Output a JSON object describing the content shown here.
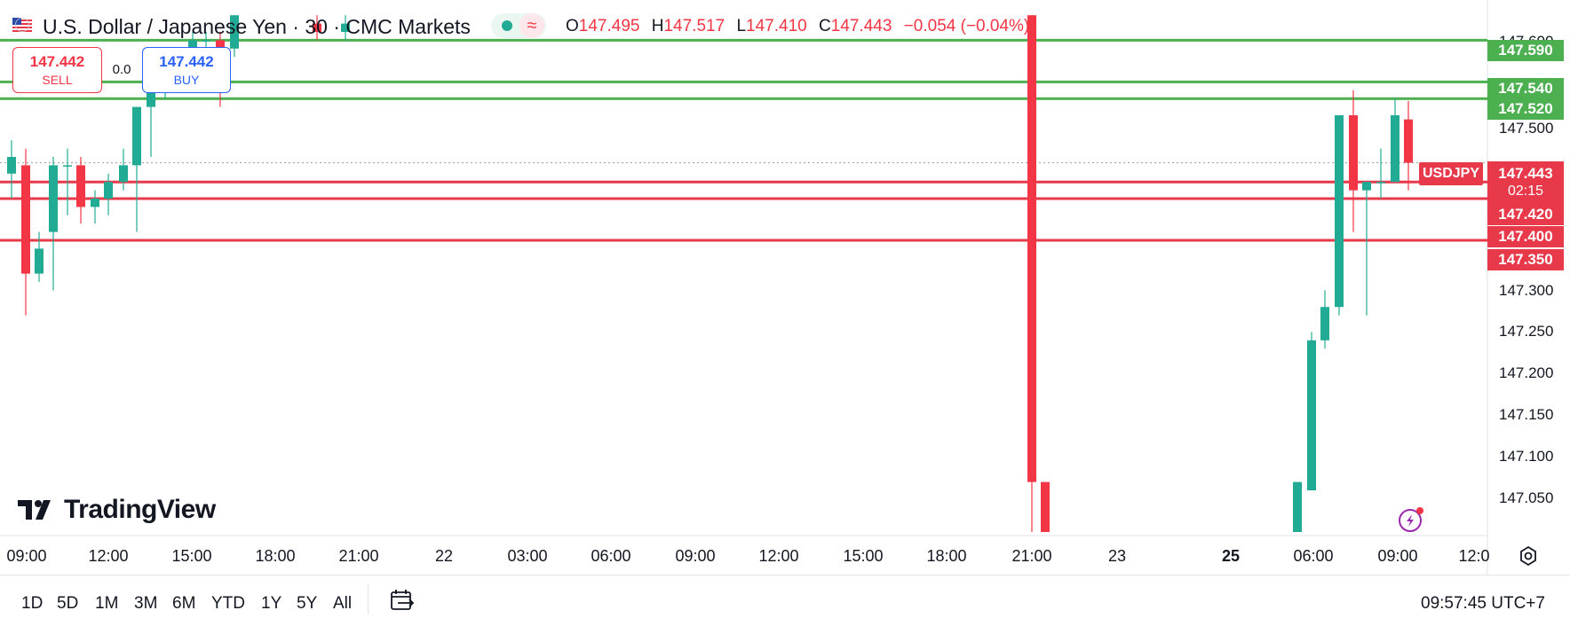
{
  "header": {
    "symbol_title": "U.S. Dollar / Japanese Yen · 30 · CMC Markets",
    "ohlc": {
      "o_label": "O",
      "o_value": "147.495",
      "h_label": "H",
      "h_value": "147.517",
      "l_label": "L",
      "l_value": "147.410",
      "c_label": "C",
      "c_value": "147.443",
      "change": "−0.054 (−0.04%)"
    },
    "status_wave": "≈"
  },
  "trade": {
    "sell_price": "147.442",
    "sell_label": "SELL",
    "spread": "0.0",
    "buy_price": "147.442",
    "buy_label": "BUY"
  },
  "price_axis": {
    "labels": [
      "147.600",
      "147.500",
      "147.300",
      "147.250",
      "147.200",
      "147.150",
      "147.100",
      "147.050"
    ]
  },
  "level_tags": {
    "green": [
      "147.590",
      "147.540",
      "147.520"
    ],
    "red": [
      "147.420",
      "147.400",
      "147.350"
    ]
  },
  "current": {
    "symbol": "USDJPY",
    "price": "147.443",
    "countdown": "02:15"
  },
  "time_axis": [
    "09:00",
    "12:00",
    "15:00",
    "18:00",
    "21:00",
    "22",
    "03:00",
    "06:00",
    "09:00",
    "12:00",
    "15:00",
    "18:00",
    "21:00",
    "23",
    "25",
    "06:00",
    "09:00",
    "12:0"
  ],
  "range_buttons": [
    "1D",
    "5D",
    "1M",
    "3M",
    "6M",
    "YTD",
    "1Y",
    "5Y",
    "All"
  ],
  "clock": "09:57:45 UTC+7",
  "logo_text": "TradingView",
  "colors": {
    "up": "#22ab94",
    "down": "#f23645",
    "support": "#e8394a",
    "resistance": "#4caf50"
  },
  "chart_data": {
    "type": "candlestick",
    "title": "U.S. Dollar / Japanese Yen · 30 · CMC Markets",
    "interval": "30",
    "ylim": [
      147.0,
      147.62
    ],
    "resistance_levels": [
      147.59,
      147.54,
      147.52
    ],
    "support_levels": [
      147.42,
      147.4,
      147.35
    ],
    "current_price": 147.443,
    "candles": [
      {
        "t": "Jul 21 08:30",
        "o": 147.43,
        "h": 147.47,
        "l": 147.4,
        "c": 147.45
      },
      {
        "t": "Jul 21 09:00",
        "o": 147.44,
        "h": 147.46,
        "l": 147.26,
        "c": 147.31
      },
      {
        "t": "Jul 21 09:30",
        "o": 147.31,
        "h": 147.36,
        "l": 147.3,
        "c": 147.34
      },
      {
        "t": "Jul 21 10:00",
        "o": 147.36,
        "h": 147.45,
        "l": 147.29,
        "c": 147.44
      },
      {
        "t": "Jul 21 10:30",
        "o": 147.44,
        "h": 147.46,
        "l": 147.38,
        "c": 147.44
      },
      {
        "t": "Jul 21 11:00",
        "o": 147.44,
        "h": 147.45,
        "l": 147.37,
        "c": 147.39
      },
      {
        "t": "Jul 21 11:30",
        "o": 147.39,
        "h": 147.41,
        "l": 147.37,
        "c": 147.4
      },
      {
        "t": "Jul 21 12:00",
        "o": 147.4,
        "h": 147.43,
        "l": 147.38,
        "c": 147.42
      },
      {
        "t": "Jul 21 12:30",
        "o": 147.42,
        "h": 147.46,
        "l": 147.41,
        "c": 147.44
      },
      {
        "t": "Jul 21 13:00",
        "o": 147.44,
        "h": 147.51,
        "l": 147.36,
        "c": 147.51
      },
      {
        "t": "Jul 21 13:30",
        "o": 147.51,
        "h": 147.55,
        "l": 147.45,
        "c": 147.55
      },
      {
        "t": "Jul 21 14:00",
        "o": 147.55,
        "h": 147.56,
        "l": 147.52,
        "c": 147.56
      },
      {
        "t": "Jul 21 14:30",
        "o": 147.56,
        "h": 147.58,
        "l": 147.54,
        "c": 147.58
      },
      {
        "t": "Jul 21 15:00",
        "o": 147.58,
        "h": 147.6,
        "l": 147.53,
        "c": 147.59
      },
      {
        "t": "Jul 21 15:30",
        "o": 147.59,
        "h": 147.6,
        "l": 147.57,
        "c": 147.59
      },
      {
        "t": "Jul 21 16:00",
        "o": 147.59,
        "h": 147.6,
        "l": 147.51,
        "c": 147.58
      },
      {
        "t": "Jul 21 16:30",
        "o": 147.58,
        "h": 147.62,
        "l": 147.57,
        "c": 147.62
      },
      {
        "t": "Jul 21 19:30",
        "o": 147.61,
        "h": 147.62,
        "l": 147.59,
        "c": 147.6
      },
      {
        "t": "Jul 21 20:30",
        "o": 147.6,
        "h": 147.62,
        "l": 147.59,
        "c": 147.61
      },
      {
        "t": "Jul 22 21:00",
        "o": 147.62,
        "h": 147.62,
        "l": 147.0,
        "c": 147.06
      },
      {
        "t": "Jul 22 21:30",
        "o": 147.06,
        "h": 147.06,
        "l": 147.0,
        "c": 147.0
      },
      {
        "t": "Jul 25 05:30",
        "o": 147.0,
        "h": 147.06,
        "l": 147.0,
        "c": 147.06
      },
      {
        "t": "Jul 25 06:00",
        "o": 147.05,
        "h": 147.24,
        "l": 147.05,
        "c": 147.23
      },
      {
        "t": "Jul 25 06:30",
        "o": 147.23,
        "h": 147.29,
        "l": 147.22,
        "c": 147.27
      },
      {
        "t": "Jul 25 07:00",
        "o": 147.27,
        "h": 147.5,
        "l": 147.26,
        "c": 147.5
      },
      {
        "t": "Jul 25 07:30",
        "o": 147.5,
        "h": 147.53,
        "l": 147.36,
        "c": 147.41
      },
      {
        "t": "Jul 25 08:00",
        "o": 147.41,
        "h": 147.42,
        "l": 147.26,
        "c": 147.42
      },
      {
        "t": "Jul 25 08:30",
        "o": 147.42,
        "h": 147.46,
        "l": 147.4,
        "c": 147.42
      },
      {
        "t": "Jul 25 09:00",
        "o": 147.42,
        "h": 147.52,
        "l": 147.42,
        "c": 147.5
      },
      {
        "t": "Jul 25 09:30",
        "o": 147.495,
        "h": 147.517,
        "l": 147.41,
        "c": 147.443
      }
    ]
  }
}
